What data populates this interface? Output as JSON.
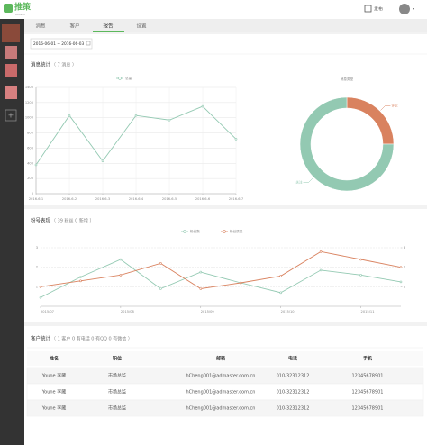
{
  "header": {
    "logo": "推策",
    "site": "tuice.in",
    "publish": "发布"
  },
  "tabs": [
    "消息",
    "客户",
    "报告",
    "设置"
  ],
  "date_range": "2016-06-01 ~ 2016-06-03",
  "message_section": {
    "title": "消息统计",
    "summary": "（ 7 消息 ）"
  },
  "fans_section": {
    "title": "粉号表现",
    "summary": "（ 39 粉丝    0 新增 ）"
  },
  "client_section": {
    "title": "客户统计",
    "summary": "（ 1 客户    0 有电话    0 有QQ    0 有微信 ）"
  },
  "table": {
    "columns": [
      "姓名",
      "职位",
      "邮箱",
      "电话",
      "手机"
    ],
    "rows": [
      [
        "Youne 李藏",
        "市场总监",
        "hCheng001@admaster.com.cn",
        "010-32312312",
        "12345678901"
      ],
      [
        "Youne 李藏",
        "市场总监",
        "hCheng001@admaster.com.cn",
        "010-32312312",
        "12345678901"
      ],
      [
        "Youne 李藏",
        "市场总监",
        "hCheng001@admaster.com.cn",
        "010-32312312",
        "12345678901"
      ]
    ]
  },
  "chart_data": [
    {
      "type": "line",
      "categories": [
        "2016-6-1",
        "2016-6-2",
        "2016-6-3",
        "2016-6-4",
        "2016-6-5",
        "2016-6-6",
        "2016-6-7"
      ],
      "series": [
        {
          "name": "总量",
          "color": "#93c9b2",
          "values": [
            380,
            1030,
            430,
            1030,
            970,
            1150,
            720
          ]
        }
      ],
      "ylim": [
        0,
        1400
      ],
      "yticks": [
        0,
        200,
        400,
        600,
        800,
        1000,
        1200,
        1400
      ],
      "grid": true
    },
    {
      "type": "pie",
      "title": "消息类型",
      "categories": [
        "评论",
        "关注"
      ],
      "values": [
        25,
        75
      ],
      "colors": [
        "#d9825f",
        "#93c9b2"
      ]
    },
    {
      "type": "line",
      "categories": [
        "2015/07",
        null,
        "2015/08",
        null,
        "2015/09",
        null,
        "2015/10",
        null,
        "2015/11",
        null
      ],
      "series": [
        {
          "name": "粉丝数",
          "color": "#93c9b2",
          "values": [
            0.45,
            1.5,
            2.4,
            0.9,
            1.75,
            1.2,
            0.7,
            1.85,
            1.6,
            1.25
          ]
        },
        {
          "name": "粉丝质量",
          "color": "#d9825f",
          "axis": "y2",
          "values": [
            1.0,
            1.3,
            1.6,
            2.2,
            0.9,
            1.2,
            1.55,
            2.8,
            2.4,
            2.0
          ]
        }
      ],
      "ylim": [
        0,
        3
      ],
      "yticks": [
        1,
        2,
        3
      ],
      "y2lim": [
        0,
        3
      ],
      "y2ticks": [
        1,
        2,
        3
      ],
      "grid": true
    }
  ]
}
